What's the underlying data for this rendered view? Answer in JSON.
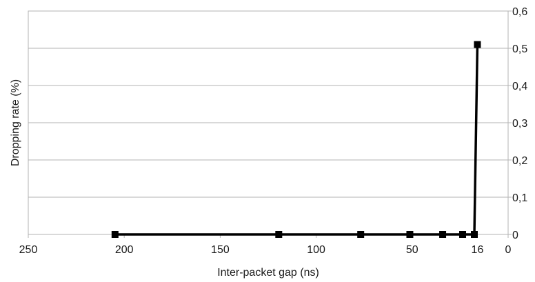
{
  "chart_data": {
    "type": "line",
    "title": "",
    "xlabel": "Inter-packet gap (ns)",
    "ylabel": "Dropping rate (%)",
    "xlim": [
      250,
      0
    ],
    "ylim": [
      0,
      0.6
    ],
    "x_reversed": true,
    "y_axis_side": "right",
    "grid": "horizontal",
    "legend": "none",
    "x_ticks": [
      {
        "value": 250,
        "label": "250"
      },
      {
        "value": 200,
        "label": "200"
      },
      {
        "value": 150,
        "label": "150"
      },
      {
        "value": 100,
        "label": "100"
      },
      {
        "value": 50,
        "label": "50"
      },
      {
        "value": 16,
        "label": "16"
      },
      {
        "value": 0,
        "label": "0"
      }
    ],
    "y_ticks": [
      {
        "value": 0,
        "label": "0"
      },
      {
        "value": 0.1,
        "label": "0,1"
      },
      {
        "value": 0.2,
        "label": "0,2"
      },
      {
        "value": 0.3,
        "label": "0,3"
      },
      {
        "value": 0.4,
        "label": "0,4"
      },
      {
        "value": 0.5,
        "label": "0,5"
      },
      {
        "value": 0.6,
        "label": "0,6"
      }
    ],
    "series": [
      {
        "x": [
          204.8,
          119.5,
          76.8,
          51.2,
          34.1,
          23.7,
          17.6,
          16
        ],
        "y": [
          0,
          0,
          0,
          0,
          0,
          0,
          0,
          0.51
        ]
      }
    ],
    "colors": {
      "line": "#000000",
      "marker": "#000000",
      "grid": "#b3b3b3",
      "frame": "#b3b3b3"
    }
  }
}
